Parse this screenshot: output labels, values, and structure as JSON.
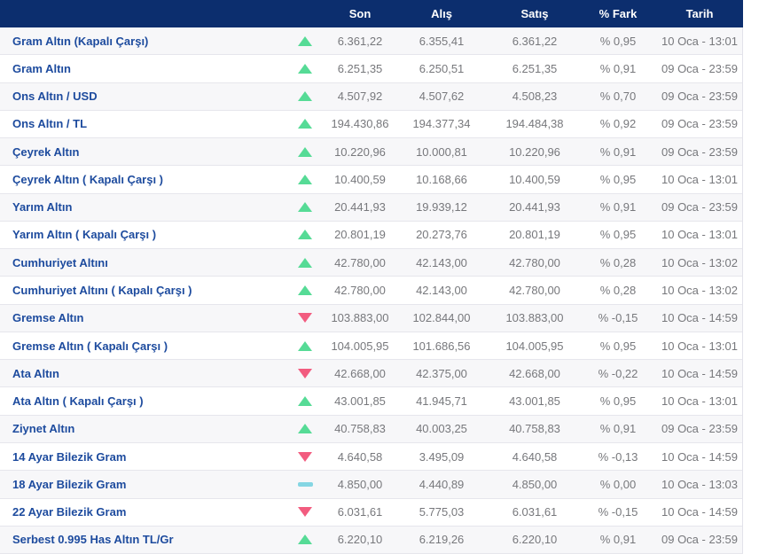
{
  "colors": {
    "header_bg": "#0c2e6e",
    "name_link": "#1d4b9e",
    "value_text": "#77787c",
    "row_alt_bg": "#f7f7f9",
    "separator": "#e6e6ec",
    "up": "#56db96",
    "down": "#f25c7f",
    "flat": "#85d6e3"
  },
  "table": {
    "columns": {
      "son": "Son",
      "alis": "Alış",
      "satis": "Satış",
      "fark": "% Fark",
      "tarih": "Tarih"
    },
    "rows": [
      {
        "name": "Gram Altın (Kapalı Çarşı)",
        "trend": "up",
        "son": "6.361,22",
        "alis": "6.355,41",
        "satis": "6.361,22",
        "fark": "% 0,95",
        "tarih": "10 Oca - 13:01"
      },
      {
        "name": "Gram Altın",
        "trend": "up",
        "son": "6.251,35",
        "alis": "6.250,51",
        "satis": "6.251,35",
        "fark": "% 0,91",
        "tarih": "09 Oca - 23:59"
      },
      {
        "name": "Ons Altın / USD",
        "trend": "up",
        "son": "4.507,92",
        "alis": "4.507,62",
        "satis": "4.508,23",
        "fark": "% 0,70",
        "tarih": "09 Oca - 23:59"
      },
      {
        "name": "Ons Altın / TL",
        "trend": "up",
        "son": "194.430,86",
        "alis": "194.377,34",
        "satis": "194.484,38",
        "fark": "% 0,92",
        "tarih": "09 Oca - 23:59"
      },
      {
        "name": "Çeyrek Altın",
        "trend": "up",
        "son": "10.220,96",
        "alis": "10.000,81",
        "satis": "10.220,96",
        "fark": "% 0,91",
        "tarih": "09 Oca - 23:59"
      },
      {
        "name": "Çeyrek Altın ( Kapalı Çarşı )",
        "trend": "up",
        "son": "10.400,59",
        "alis": "10.168,66",
        "satis": "10.400,59",
        "fark": "% 0,95",
        "tarih": "10 Oca - 13:01"
      },
      {
        "name": "Yarım Altın",
        "trend": "up",
        "son": "20.441,93",
        "alis": "19.939,12",
        "satis": "20.441,93",
        "fark": "% 0,91",
        "tarih": "09 Oca - 23:59"
      },
      {
        "name": "Yarım Altın ( Kapalı Çarşı )",
        "trend": "up",
        "son": "20.801,19",
        "alis": "20.273,76",
        "satis": "20.801,19",
        "fark": "% 0,95",
        "tarih": "10 Oca - 13:01"
      },
      {
        "name": "Cumhuriyet Altını",
        "trend": "up",
        "son": "42.780,00",
        "alis": "42.143,00",
        "satis": "42.780,00",
        "fark": "% 0,28",
        "tarih": "10 Oca - 13:02"
      },
      {
        "name": "Cumhuriyet Altını ( Kapalı Çarşı )",
        "trend": "up",
        "son": "42.780,00",
        "alis": "42.143,00",
        "satis": "42.780,00",
        "fark": "% 0,28",
        "tarih": "10 Oca - 13:02"
      },
      {
        "name": "Gremse Altın",
        "trend": "down",
        "son": "103.883,00",
        "alis": "102.844,00",
        "satis": "103.883,00",
        "fark": "% -0,15",
        "tarih": "10 Oca - 14:59"
      },
      {
        "name": "Gremse Altın ( Kapalı Çarşı )",
        "trend": "up",
        "son": "104.005,95",
        "alis": "101.686,56",
        "satis": "104.005,95",
        "fark": "% 0,95",
        "tarih": "10 Oca - 13:01"
      },
      {
        "name": "Ata Altın",
        "trend": "down",
        "son": "42.668,00",
        "alis": "42.375,00",
        "satis": "42.668,00",
        "fark": "% -0,22",
        "tarih": "10 Oca - 14:59"
      },
      {
        "name": "Ata Altın ( Kapalı Çarşı )",
        "trend": "up",
        "son": "43.001,85",
        "alis": "41.945,71",
        "satis": "43.001,85",
        "fark": "% 0,95",
        "tarih": "10 Oca - 13:01"
      },
      {
        "name": "Ziynet Altın",
        "trend": "up",
        "son": "40.758,83",
        "alis": "40.003,25",
        "satis": "40.758,83",
        "fark": "% 0,91",
        "tarih": "09 Oca - 23:59"
      },
      {
        "name": "14 Ayar Bilezik Gram",
        "trend": "down",
        "son": "4.640,58",
        "alis": "3.495,09",
        "satis": "4.640,58",
        "fark": "% -0,13",
        "tarih": "10 Oca - 14:59"
      },
      {
        "name": "18 Ayar Bilezik Gram",
        "trend": "flat",
        "son": "4.850,00",
        "alis": "4.440,89",
        "satis": "4.850,00",
        "fark": "% 0,00",
        "tarih": "10 Oca - 13:03"
      },
      {
        "name": "22 Ayar Bilezik Gram",
        "trend": "down",
        "son": "6.031,61",
        "alis": "5.775,03",
        "satis": "6.031,61",
        "fark": "% -0,15",
        "tarih": "10 Oca - 14:59"
      },
      {
        "name": "Serbest 0.995 Has Altın TL/Gr",
        "trend": "up",
        "son": "6.220,10",
        "alis": "6.219,26",
        "satis": "6.220,10",
        "fark": "% 0,91",
        "tarih": "09 Oca - 23:59"
      }
    ]
  }
}
